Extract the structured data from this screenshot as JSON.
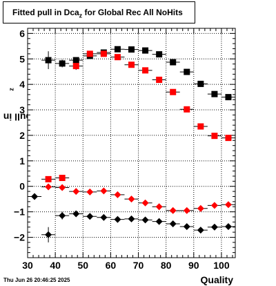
{
  "title": {
    "prefix": "Fitted pull in Dca",
    "subscript": "z",
    "suffix": " for Global Rec All NoHits"
  },
  "ylabel": {
    "main": "pull in Dca",
    "subscript": "z"
  },
  "xlabel": "Quality",
  "timestamp": "Thu Jun 26 20:46:25 2025",
  "chart_data": {
    "type": "scatter",
    "xlim": [
      30,
      105
    ],
    "ylim": [
      -2.8,
      6.2
    ],
    "xticks": [
      30,
      40,
      50,
      60,
      70,
      80,
      90,
      100
    ],
    "yticks": [
      -2,
      -1,
      0,
      1,
      2,
      3,
      4,
      5,
      6
    ],
    "grid": true,
    "series": [
      {
        "marker": "square",
        "color": "#000000",
        "x": [
          37.5,
          42.5,
          47.5,
          52.5,
          57.5,
          62.5,
          67.5,
          72.5,
          77.5,
          82.5,
          87.5,
          92.5,
          97.5,
          102.5
        ],
        "y": [
          4.95,
          4.82,
          4.95,
          5.12,
          5.25,
          5.38,
          5.37,
          5.33,
          5.18,
          4.87,
          4.49,
          4.02,
          3.62,
          3.5
        ],
        "yerr": [
          0.35,
          0.15,
          0.1,
          0.08,
          0.05,
          0.05,
          0.05,
          0.05,
          0.05,
          0.05,
          0.05,
          0.05,
          0.05,
          0.05
        ]
      },
      {
        "marker": "square",
        "color": "#ff0000",
        "x": [
          37.5,
          42.5,
          47.5,
          52.5,
          57.5,
          62.5,
          67.5,
          72.5,
          77.5,
          82.5,
          87.5,
          92.5,
          97.5,
          102.5
        ],
        "y": [
          0.28,
          0.33,
          4.72,
          5.2,
          5.2,
          5.07,
          4.77,
          4.55,
          4.18,
          3.7,
          3.02,
          2.35,
          1.98,
          1.9
        ],
        "yerr": [
          0.05,
          0.05,
          0.15,
          0.08,
          0.06,
          0.05,
          0.05,
          0.05,
          0.05,
          0.05,
          0.05,
          0.05,
          0.05,
          0.05
        ]
      },
      {
        "marker": "diamond",
        "color": "#ff0000",
        "x": [
          37.5,
          42.5,
          47.5,
          52.5,
          57.5,
          62.5,
          67.5,
          72.5,
          77.5,
          82.5,
          87.5,
          92.5,
          97.5,
          102.5
        ],
        "y": [
          -0.02,
          -0.05,
          -0.2,
          -0.22,
          -0.18,
          -0.33,
          -0.5,
          -0.65,
          -0.8,
          -0.95,
          -0.95,
          -0.87,
          -0.75,
          -0.72
        ],
        "yerr": [
          0.05,
          0.05,
          0.05,
          0.05,
          0.05,
          0.05,
          0.05,
          0.05,
          0.05,
          0.05,
          0.05,
          0.05,
          0.05,
          0.05
        ]
      },
      {
        "marker": "diamond",
        "color": "#000000",
        "x": [
          32.5,
          37.5,
          42.5,
          47.5,
          52.5,
          57.5,
          62.5,
          67.5,
          72.5,
          77.5,
          82.5,
          87.5,
          92.5,
          97.5,
          102.5
        ],
        "y": [
          -0.4,
          -1.9,
          -1.15,
          -1.08,
          -1.18,
          -1.22,
          -1.3,
          -1.28,
          -1.32,
          -1.38,
          -1.47,
          -1.58,
          -1.72,
          -1.6,
          -1.58
        ],
        "yerr": [
          0.08,
          0.3,
          0.15,
          0.07,
          0.05,
          0.05,
          0.05,
          0.05,
          0.05,
          0.05,
          0.05,
          0.05,
          0.05,
          0.05,
          0.05
        ]
      }
    ]
  }
}
